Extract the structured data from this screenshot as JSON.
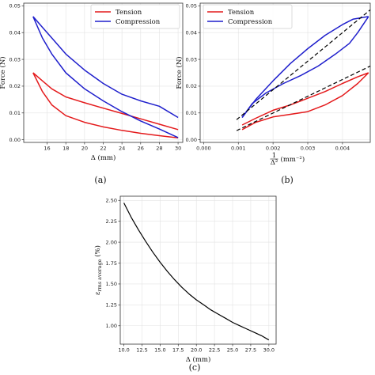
{
  "captions": {
    "a": "(a)",
    "b": "(b)",
    "c": "(c)"
  },
  "colors": {
    "tension": "#e41a1c",
    "compression": "#1f1fcc",
    "fit": "#000000",
    "curve": "#000000"
  },
  "chart_data": [
    {
      "id": "a",
      "type": "line",
      "xlabel": "Δ (mm)",
      "ylabel": "Force (N)",
      "xlim": [
        13.5,
        30.5
      ],
      "ylim": [
        -0.001,
        0.051
      ],
      "xticks": [
        16,
        18,
        20,
        22,
        24,
        26,
        28,
        30
      ],
      "yticks": [
        0.0,
        0.01,
        0.02,
        0.03,
        0.04,
        0.05
      ],
      "xtick_labels": [
        "16",
        "18",
        "20",
        "22",
        "24",
        "26",
        "28",
        "30"
      ],
      "ytick_labels": [
        "0.00",
        "0.01",
        "0.02",
        "0.03",
        "0.04",
        "0.05"
      ],
      "grid": true,
      "legend": {
        "position": "top-right",
        "entries": [
          "Tension",
          "Compression"
        ]
      },
      "series": [
        {
          "name": "Tension",
          "color": "tension",
          "x": [
            14.5,
            15.5,
            16.5,
            18,
            20,
            22,
            24,
            26,
            28,
            30
          ],
          "y": [
            0.025,
            0.018,
            0.013,
            0.009,
            0.0065,
            0.0048,
            0.0035,
            0.0024,
            0.0015,
            0.0007
          ]
        },
        {
          "name": "Tension",
          "color": "tension",
          "x": [
            14.5,
            15.5,
            16.5,
            18,
            20,
            22,
            24,
            26,
            28,
            30
          ],
          "y": [
            0.025,
            0.022,
            0.019,
            0.016,
            0.0138,
            0.0118,
            0.0098,
            0.0078,
            0.0058,
            0.0038
          ]
        },
        {
          "name": "Compression",
          "color": "compression",
          "x": [
            14.5,
            15.5,
            16.5,
            18,
            20,
            22,
            24,
            26,
            28,
            30
          ],
          "y": [
            0.046,
            0.038,
            0.032,
            0.025,
            0.019,
            0.0145,
            0.0105,
            0.007,
            0.004,
            0.0008
          ]
        },
        {
          "name": "Compression",
          "color": "compression",
          "x": [
            14.5,
            15.5,
            16.5,
            18,
            20,
            22,
            24,
            26,
            28,
            30
          ],
          "y": [
            0.046,
            0.042,
            0.038,
            0.032,
            0.026,
            0.021,
            0.017,
            0.0145,
            0.0125,
            0.0083
          ]
        }
      ]
    },
    {
      "id": "b",
      "type": "line",
      "xlabel": "(mm⁻²)",
      "xlabel_frac": {
        "num": "1",
        "den": "Δ²"
      },
      "ylabel": "Force (N)",
      "xlim": [
        -0.0001,
        0.0048
      ],
      "ylim": [
        -0.001,
        0.051
      ],
      "xticks": [
        0.0,
        0.001,
        0.002,
        0.003,
        0.004
      ],
      "yticks": [
        0.0,
        0.01,
        0.02,
        0.03,
        0.04,
        0.05
      ],
      "xtick_labels": [
        "0.000",
        "0.001",
        "0.002",
        "0.003",
        "0.004"
      ],
      "ytick_labels": [
        "0.00",
        "0.01",
        "0.02",
        "0.03",
        "0.04",
        "0.05"
      ],
      "grid": true,
      "legend": {
        "position": "top-left",
        "entries": [
          "Tension",
          "Compression"
        ]
      },
      "series": [
        {
          "name": "Tension",
          "color": "tension",
          "x": [
            0.00111,
            0.0015,
            0.002,
            0.0025,
            0.003,
            0.0035,
            0.004,
            0.00444,
            0.00475
          ],
          "y": [
            0.0038,
            0.0065,
            0.0085,
            0.0095,
            0.0105,
            0.013,
            0.0165,
            0.021,
            0.025
          ]
        },
        {
          "name": "Tension",
          "color": "tension",
          "x": [
            0.00111,
            0.0015,
            0.002,
            0.0025,
            0.003,
            0.0035,
            0.004,
            0.00444,
            0.00475
          ],
          "y": [
            0.0055,
            0.008,
            0.011,
            0.013,
            0.0155,
            0.018,
            0.021,
            0.0235,
            0.025
          ]
        },
        {
          "name": "Compression",
          "color": "compression",
          "x": [
            0.00111,
            0.0014,
            0.0018,
            0.0023,
            0.0028,
            0.0033,
            0.0038,
            0.0042,
            0.00444,
            0.00475
          ],
          "y": [
            0.0083,
            0.0135,
            0.0175,
            0.021,
            0.024,
            0.0275,
            0.032,
            0.036,
            0.04,
            0.046
          ]
        },
        {
          "name": "Compression",
          "color": "compression",
          "x": [
            0.00111,
            0.0015,
            0.002,
            0.0025,
            0.003,
            0.0035,
            0.004,
            0.0043,
            0.00475
          ],
          "y": [
            0.0083,
            0.015,
            0.022,
            0.0285,
            0.034,
            0.039,
            0.043,
            0.045,
            0.046
          ]
        }
      ],
      "fits": [
        {
          "x": [
            0.00095,
            0.0048
          ],
          "y": [
            0.0075,
            0.0485
          ]
        },
        {
          "x": [
            0.00095,
            0.0048
          ],
          "y": [
            0.0034,
            0.0275
          ]
        }
      ]
    },
    {
      "id": "c",
      "type": "line",
      "xlabel": "Δ (mm)",
      "ylabel": "ε",
      "ylabel_sub": "rms average",
      "ylabel_unit": "(%)",
      "xlim": [
        9.5,
        31
      ],
      "ylim": [
        0.78,
        2.55
      ],
      "xticks": [
        10,
        12.5,
        15,
        17.5,
        20,
        22.5,
        25,
        27.5,
        30
      ],
      "yticks": [
        1.0,
        1.25,
        1.5,
        1.75,
        2.0,
        2.25,
        2.5
      ],
      "xtick_labels": [
        "10.0",
        "12.5",
        "15.0",
        "17.5",
        "20.0",
        "22.5",
        "25.0",
        "27.5",
        "30.0"
      ],
      "ytick_labels": [
        "1.00",
        "1.25",
        "1.50",
        "1.75",
        "2.00",
        "2.25",
        "2.50"
      ],
      "grid": true,
      "series": [
        {
          "color": "curve",
          "x": [
            10,
            11,
            12,
            13,
            14,
            15,
            16,
            17,
            18,
            19,
            20,
            21,
            22,
            23,
            24,
            25,
            26,
            27,
            28,
            29,
            30
          ],
          "y": [
            2.47,
            2.3,
            2.15,
            2.01,
            1.88,
            1.76,
            1.65,
            1.55,
            1.46,
            1.38,
            1.31,
            1.25,
            1.19,
            1.14,
            1.09,
            1.04,
            1.0,
            0.96,
            0.92,
            0.88,
            0.83
          ]
        }
      ]
    }
  ]
}
